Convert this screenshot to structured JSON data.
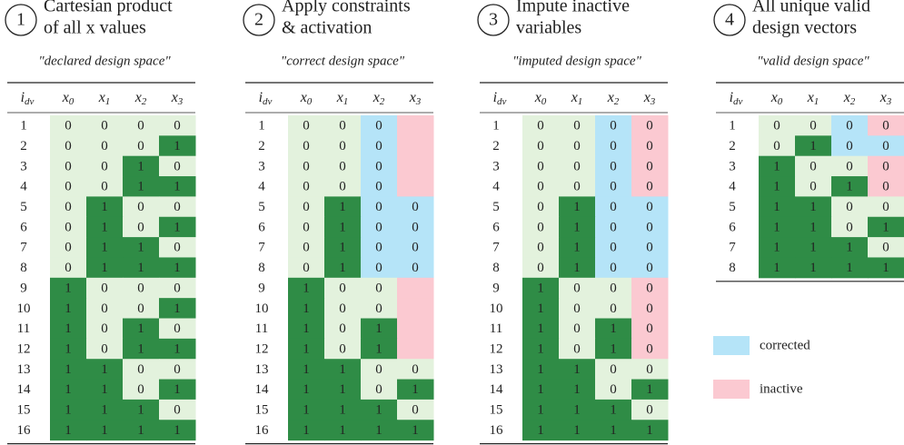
{
  "styles": {
    "g": {
      "fill": "#e3f2dd",
      "text": "#222222"
    },
    "G": {
      "fill": "#2f8c46",
      "text": "#d8ecd4"
    },
    "b": {
      "fill": "#b5e4f8",
      "text": "#2b6ea8"
    },
    "p": {
      "fill": "#fbc9d1",
      "text": "#c0392b"
    }
  },
  "headers": [
    [
      "i",
      "dv"
    ],
    [
      "x",
      "0"
    ],
    [
      "x",
      "1"
    ],
    [
      "x",
      "2"
    ],
    [
      "x",
      "3"
    ]
  ],
  "panels": [
    {
      "number": 1,
      "title": [
        "Cartesian product",
        "of all x values"
      ],
      "subtitle": "\"declared design space\"",
      "rows": [
        {
          "id": 1,
          "values": [
            0,
            0,
            0,
            0
          ],
          "states": [
            "g",
            "g",
            "g",
            "g"
          ]
        },
        {
          "id": 2,
          "values": [
            0,
            0,
            0,
            1
          ],
          "states": [
            "g",
            "g",
            "g",
            "G"
          ]
        },
        {
          "id": 3,
          "values": [
            0,
            0,
            1,
            0
          ],
          "states": [
            "g",
            "g",
            "G",
            "g"
          ]
        },
        {
          "id": 4,
          "values": [
            0,
            0,
            1,
            1
          ],
          "states": [
            "g",
            "g",
            "G",
            "G"
          ]
        },
        {
          "id": 5,
          "values": [
            0,
            1,
            0,
            0
          ],
          "states": [
            "g",
            "G",
            "g",
            "g"
          ]
        },
        {
          "id": 6,
          "values": [
            0,
            1,
            0,
            1
          ],
          "states": [
            "g",
            "G",
            "g",
            "G"
          ]
        },
        {
          "id": 7,
          "values": [
            0,
            1,
            1,
            0
          ],
          "states": [
            "g",
            "G",
            "G",
            "g"
          ]
        },
        {
          "id": 8,
          "values": [
            0,
            1,
            1,
            1
          ],
          "states": [
            "g",
            "G",
            "G",
            "G"
          ]
        },
        {
          "id": 9,
          "values": [
            1,
            0,
            0,
            0
          ],
          "states": [
            "G",
            "g",
            "g",
            "g"
          ]
        },
        {
          "id": 10,
          "values": [
            1,
            0,
            0,
            1
          ],
          "states": [
            "G",
            "g",
            "g",
            "G"
          ]
        },
        {
          "id": 11,
          "values": [
            1,
            0,
            1,
            0
          ],
          "states": [
            "G",
            "g",
            "G",
            "g"
          ]
        },
        {
          "id": 12,
          "values": [
            1,
            0,
            1,
            1
          ],
          "states": [
            "G",
            "g",
            "G",
            "G"
          ]
        },
        {
          "id": 13,
          "values": [
            1,
            1,
            0,
            0
          ],
          "states": [
            "G",
            "G",
            "g",
            "g"
          ]
        },
        {
          "id": 14,
          "values": [
            1,
            1,
            0,
            1
          ],
          "states": [
            "G",
            "G",
            "g",
            "G"
          ]
        },
        {
          "id": 15,
          "values": [
            1,
            1,
            1,
            0
          ],
          "states": [
            "G",
            "G",
            "G",
            "g"
          ]
        },
        {
          "id": 16,
          "values": [
            1,
            1,
            1,
            1
          ],
          "states": [
            "G",
            "G",
            "G",
            "G"
          ]
        }
      ]
    },
    {
      "number": 2,
      "title": [
        "Apply constraints",
        "& activation"
      ],
      "subtitle": "\"correct design space\"",
      "rows": [
        {
          "id": 1,
          "values": [
            0,
            0,
            0,
            null
          ],
          "states": [
            "g",
            "g",
            "b",
            "p"
          ]
        },
        {
          "id": 2,
          "values": [
            0,
            0,
            0,
            null
          ],
          "states": [
            "g",
            "g",
            "b",
            "p"
          ]
        },
        {
          "id": 3,
          "values": [
            0,
            0,
            0,
            null
          ],
          "states": [
            "g",
            "g",
            "b",
            "p"
          ]
        },
        {
          "id": 4,
          "values": [
            0,
            0,
            0,
            null
          ],
          "states": [
            "g",
            "g",
            "b",
            "p"
          ]
        },
        {
          "id": 5,
          "values": [
            0,
            1,
            0,
            0
          ],
          "states": [
            "g",
            "G",
            "b",
            "b"
          ]
        },
        {
          "id": 6,
          "values": [
            0,
            1,
            0,
            0
          ],
          "states": [
            "g",
            "G",
            "b",
            "b"
          ]
        },
        {
          "id": 7,
          "values": [
            0,
            1,
            0,
            0
          ],
          "states": [
            "g",
            "G",
            "b",
            "b"
          ]
        },
        {
          "id": 8,
          "values": [
            0,
            1,
            0,
            0
          ],
          "states": [
            "g",
            "G",
            "b",
            "b"
          ]
        },
        {
          "id": 9,
          "values": [
            1,
            0,
            0,
            null
          ],
          "states": [
            "G",
            "g",
            "g",
            "p"
          ]
        },
        {
          "id": 10,
          "values": [
            1,
            0,
            0,
            null
          ],
          "states": [
            "G",
            "g",
            "g",
            "p"
          ]
        },
        {
          "id": 11,
          "values": [
            1,
            0,
            1,
            null
          ],
          "states": [
            "G",
            "g",
            "G",
            "p"
          ]
        },
        {
          "id": 12,
          "values": [
            1,
            0,
            1,
            null
          ],
          "states": [
            "G",
            "g",
            "G",
            "p"
          ]
        },
        {
          "id": 13,
          "values": [
            1,
            1,
            0,
            0
          ],
          "states": [
            "G",
            "G",
            "g",
            "g"
          ]
        },
        {
          "id": 14,
          "values": [
            1,
            1,
            0,
            1
          ],
          "states": [
            "G",
            "G",
            "g",
            "G"
          ]
        },
        {
          "id": 15,
          "values": [
            1,
            1,
            1,
            0
          ],
          "states": [
            "G",
            "G",
            "G",
            "g"
          ]
        },
        {
          "id": 16,
          "values": [
            1,
            1,
            1,
            1
          ],
          "states": [
            "G",
            "G",
            "G",
            "G"
          ]
        }
      ]
    },
    {
      "number": 3,
      "title": [
        "Impute inactive",
        "variables"
      ],
      "subtitle": "\"imputed design space\"",
      "rows": [
        {
          "id": 1,
          "values": [
            0,
            0,
            0,
            0
          ],
          "states": [
            "g",
            "g",
            "b",
            "p"
          ]
        },
        {
          "id": 2,
          "values": [
            0,
            0,
            0,
            0
          ],
          "states": [
            "g",
            "g",
            "b",
            "p"
          ]
        },
        {
          "id": 3,
          "values": [
            0,
            0,
            0,
            0
          ],
          "states": [
            "g",
            "g",
            "b",
            "p"
          ]
        },
        {
          "id": 4,
          "values": [
            0,
            0,
            0,
            0
          ],
          "states": [
            "g",
            "g",
            "b",
            "p"
          ]
        },
        {
          "id": 5,
          "values": [
            0,
            1,
            0,
            0
          ],
          "states": [
            "g",
            "G",
            "b",
            "b"
          ]
        },
        {
          "id": 6,
          "values": [
            0,
            1,
            0,
            0
          ],
          "states": [
            "g",
            "G",
            "b",
            "b"
          ]
        },
        {
          "id": 7,
          "values": [
            0,
            1,
            0,
            0
          ],
          "states": [
            "g",
            "G",
            "b",
            "b"
          ]
        },
        {
          "id": 8,
          "values": [
            0,
            1,
            0,
            0
          ],
          "states": [
            "g",
            "G",
            "b",
            "b"
          ]
        },
        {
          "id": 9,
          "values": [
            1,
            0,
            0,
            0
          ],
          "states": [
            "G",
            "g",
            "g",
            "p"
          ]
        },
        {
          "id": 10,
          "values": [
            1,
            0,
            0,
            0
          ],
          "states": [
            "G",
            "g",
            "g",
            "p"
          ]
        },
        {
          "id": 11,
          "values": [
            1,
            0,
            1,
            0
          ],
          "states": [
            "G",
            "g",
            "G",
            "p"
          ]
        },
        {
          "id": 12,
          "values": [
            1,
            0,
            1,
            0
          ],
          "states": [
            "G",
            "g",
            "G",
            "p"
          ]
        },
        {
          "id": 13,
          "values": [
            1,
            1,
            0,
            0
          ],
          "states": [
            "G",
            "G",
            "g",
            "g"
          ]
        },
        {
          "id": 14,
          "values": [
            1,
            1,
            0,
            1
          ],
          "states": [
            "G",
            "G",
            "g",
            "G"
          ]
        },
        {
          "id": 15,
          "values": [
            1,
            1,
            1,
            0
          ],
          "states": [
            "G",
            "G",
            "G",
            "g"
          ]
        },
        {
          "id": 16,
          "values": [
            1,
            1,
            1,
            1
          ],
          "states": [
            "G",
            "G",
            "G",
            "G"
          ]
        }
      ]
    },
    {
      "number": 4,
      "title": [
        "All unique valid",
        "design vectors"
      ],
      "subtitle": "\"valid design space\"",
      "rows": [
        {
          "id": 1,
          "values": [
            0,
            0,
            0,
            0
          ],
          "states": [
            "g",
            "g",
            "b",
            "p"
          ]
        },
        {
          "id": 2,
          "values": [
            0,
            1,
            0,
            0
          ],
          "states": [
            "g",
            "G",
            "b",
            "b"
          ]
        },
        {
          "id": 3,
          "values": [
            1,
            0,
            0,
            0
          ],
          "states": [
            "G",
            "g",
            "g",
            "p"
          ]
        },
        {
          "id": 4,
          "values": [
            1,
            0,
            1,
            0
          ],
          "states": [
            "G",
            "g",
            "G",
            "p"
          ]
        },
        {
          "id": 5,
          "values": [
            1,
            1,
            0,
            0
          ],
          "states": [
            "G",
            "G",
            "g",
            "g"
          ]
        },
        {
          "id": 6,
          "values": [
            1,
            1,
            0,
            1
          ],
          "states": [
            "G",
            "G",
            "g",
            "G"
          ]
        },
        {
          "id": 7,
          "values": [
            1,
            1,
            1,
            0
          ],
          "states": [
            "G",
            "G",
            "G",
            "g"
          ]
        },
        {
          "id": 8,
          "values": [
            1,
            1,
            1,
            1
          ],
          "states": [
            "G",
            "G",
            "G",
            "G"
          ]
        }
      ]
    }
  ],
  "legend": [
    {
      "label": "corrected",
      "state": "b"
    },
    {
      "label": "inactive",
      "state": "p"
    }
  ]
}
